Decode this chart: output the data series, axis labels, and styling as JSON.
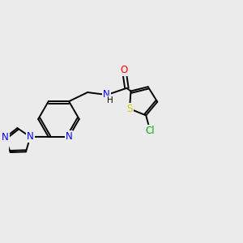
{
  "background_color": "#ebebeb",
  "bond_color": "#000000",
  "bond_width": 1.4,
  "atom_colors": {
    "N": "#0000ff",
    "O": "#ff0000",
    "S": "#cccc00",
    "Cl": "#00aa00",
    "C": "#000000",
    "H": "#000000"
  },
  "font_size": 8.5,
  "fig_width": 3.0,
  "fig_height": 3.0,
  "dpi": 100
}
